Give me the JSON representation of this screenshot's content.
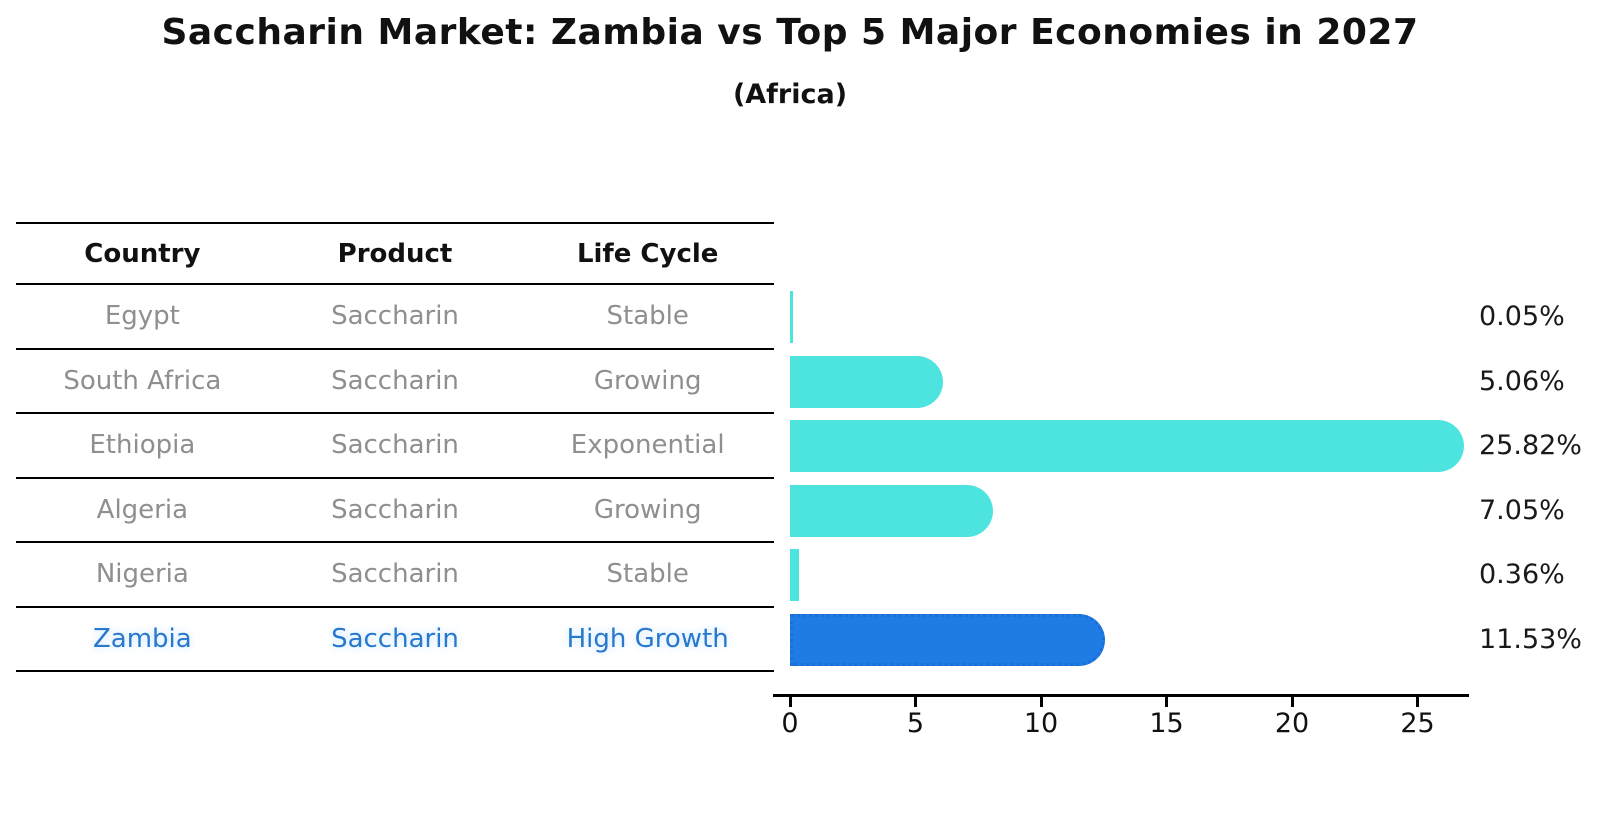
{
  "header": {
    "title": "Saccharin Market: Zambia vs Top 5 Major Economies in 2027",
    "subtitle": "(Africa)"
  },
  "table": {
    "headers": [
      "Country",
      "Product",
      "Life Cycle"
    ]
  },
  "rows": [
    {
      "country": "Egypt",
      "product": "Saccharin",
      "life_cycle": "Stable",
      "value": 0.05,
      "label": "0.05%",
      "highlight": false
    },
    {
      "country": "South Africa",
      "product": "Saccharin",
      "life_cycle": "Growing",
      "value": 5.06,
      "label": "5.06%",
      "highlight": false
    },
    {
      "country": "Ethiopia",
      "product": "Saccharin",
      "life_cycle": "Exponential",
      "value": 25.82,
      "label": "25.82%",
      "highlight": false
    },
    {
      "country": "Algeria",
      "product": "Saccharin",
      "life_cycle": "Growing",
      "value": 7.05,
      "label": "7.05%",
      "highlight": false
    },
    {
      "country": "Nigeria",
      "product": "Saccharin",
      "life_cycle": "Stable",
      "value": 0.36,
      "label": "0.36%",
      "highlight": false
    },
    {
      "country": "Zambia",
      "product": "Saccharin",
      "life_cycle": "High Growth",
      "value": 11.53,
      "label": "11.53%",
      "highlight": true
    }
  ],
  "chart_data": {
    "type": "bar",
    "orientation": "horizontal",
    "title": "Saccharin Market: Zambia vs Top 5 Major Economies in 2027",
    "subtitle": "(Africa)",
    "categories": [
      "Egypt",
      "South Africa",
      "Ethiopia",
      "Algeria",
      "Nigeria",
      "Zambia"
    ],
    "values": [
      0.05,
      5.06,
      25.82,
      7.05,
      0.36,
      11.53
    ],
    "value_labels": [
      "0.05%",
      "5.06%",
      "25.82%",
      "7.05%",
      "0.36%",
      "11.53%"
    ],
    "x_ticks": [
      0,
      5,
      10,
      15,
      20,
      25
    ],
    "xlim": [
      0,
      27.2
    ],
    "grid": false,
    "legend": false,
    "highlight_category": "Zambia",
    "unit": "%"
  },
  "colors": {
    "bar": "#4DE4DF",
    "highlight_bar": "#1E7CE4",
    "highlight_border": "#1A6FD8",
    "highlight_text": "#2878CE",
    "row_text": "#8F8F8F",
    "value_text": "#1A1A1A",
    "axis": "#000000"
  }
}
